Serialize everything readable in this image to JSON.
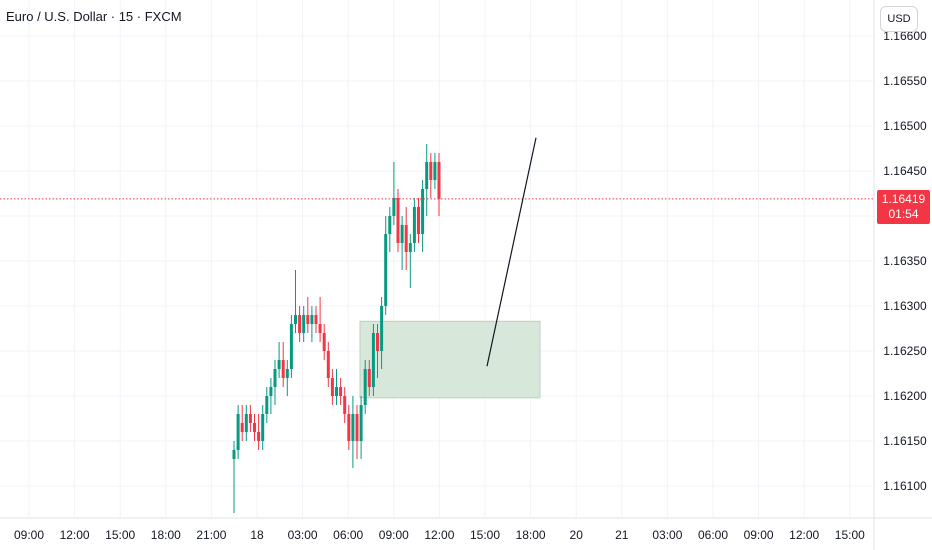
{
  "header": {
    "title": "Euro / U.S. Dollar · 15 · FXCM"
  },
  "currency_label": "USD",
  "last_price": {
    "value": "1.16419",
    "countdown": "01:54"
  },
  "colors": {
    "up": "#089981",
    "down": "#f23645",
    "grid": "#f0f3fa",
    "box_fill": "#d7e7d9",
    "box_stroke": "#b9d3bd",
    "line": "#131722"
  },
  "chart_data": {
    "type": "candlestick",
    "symbol": "EURUSD",
    "interval": "15",
    "ylim": [
      1.1607,
      1.16595
    ],
    "yticks": [
      1.161,
      1.1615,
      1.162,
      1.1625,
      1.163,
      1.1635,
      1.164,
      1.1645,
      1.165,
      1.1655,
      1.166
    ],
    "ytick_labels": [
      "1.16100",
      "1.16150",
      "1.16200",
      "1.16250",
      "1.16300",
      "1.16350",
      "1.16400",
      "1.16450",
      "1.16500",
      "1.16550",
      "1.16600"
    ],
    "xtick_labels": [
      "09:00",
      "12:00",
      "15:00",
      "18:00",
      "21:00",
      "18",
      "03:00",
      "06:00",
      "09:00",
      "12:00",
      "15:00",
      "18:00",
      "20",
      "21",
      "03:00",
      "06:00",
      "09:00",
      "12:00",
      "15:00"
    ],
    "candles_ohlc": [
      [
        1.1613,
        1.1615,
        1.1607,
        1.1614
      ],
      [
        1.1614,
        1.1619,
        1.1613,
        1.1618
      ],
      [
        1.1617,
        1.1619,
        1.1615,
        1.1616
      ],
      [
        1.1616,
        1.1619,
        1.1615,
        1.1618
      ],
      [
        1.1618,
        1.1619,
        1.1616,
        1.1617
      ],
      [
        1.1617,
        1.1618,
        1.1615,
        1.1616
      ],
      [
        1.1616,
        1.1618,
        1.1614,
        1.1615
      ],
      [
        1.1615,
        1.1619,
        1.1614,
        1.1618
      ],
      [
        1.1618,
        1.1621,
        1.1617,
        1.162
      ],
      [
        1.162,
        1.1622,
        1.1618,
        1.1621
      ],
      [
        1.1621,
        1.1624,
        1.1619,
        1.1623
      ],
      [
        1.1623,
        1.1626,
        1.1622,
        1.1624
      ],
      [
        1.1624,
        1.1626,
        1.1621,
        1.1622
      ],
      [
        1.1622,
        1.1624,
        1.162,
        1.1623
      ],
      [
        1.1623,
        1.1629,
        1.1622,
        1.1628
      ],
      [
        1.1628,
        1.1634,
        1.1627,
        1.1629
      ],
      [
        1.1629,
        1.163,
        1.1626,
        1.1627
      ],
      [
        1.1627,
        1.163,
        1.1626,
        1.1629
      ],
      [
        1.1629,
        1.1631,
        1.1627,
        1.1628
      ],
      [
        1.1628,
        1.163,
        1.1626,
        1.1629
      ],
      [
        1.1629,
        1.163,
        1.1627,
        1.1628
      ],
      [
        1.1628,
        1.1631,
        1.1626,
        1.1627
      ],
      [
        1.1627,
        1.1628,
        1.1624,
        1.1625
      ],
      [
        1.1625,
        1.1626,
        1.1621,
        1.1622
      ],
      [
        1.1622,
        1.1623,
        1.1619,
        1.162
      ],
      [
        1.162,
        1.1623,
        1.1619,
        1.1621
      ],
      [
        1.1621,
        1.1622,
        1.1619,
        1.162
      ],
      [
        1.162,
        1.1621,
        1.1617,
        1.1618
      ],
      [
        1.1618,
        1.1619,
        1.1614,
        1.1615
      ],
      [
        1.1615,
        1.162,
        1.1612,
        1.1618
      ],
      [
        1.1618,
        1.1619,
        1.1613,
        1.1615
      ],
      [
        1.1615,
        1.162,
        1.1613,
        1.1619
      ],
      [
        1.1619,
        1.1624,
        1.1618,
        1.1623
      ],
      [
        1.1623,
        1.1624,
        1.162,
        1.1621
      ],
      [
        1.1621,
        1.1628,
        1.162,
        1.1627
      ],
      [
        1.1627,
        1.1628,
        1.1622,
        1.1625
      ],
      [
        1.1625,
        1.1631,
        1.1623,
        1.163
      ],
      [
        1.163,
        1.164,
        1.1629,
        1.1638
      ],
      [
        1.1638,
        1.1641,
        1.1636,
        1.164
      ],
      [
        1.164,
        1.1646,
        1.1639,
        1.1642
      ],
      [
        1.1642,
        1.1643,
        1.1636,
        1.1637
      ],
      [
        1.1637,
        1.164,
        1.1634,
        1.1639
      ],
      [
        1.1639,
        1.1641,
        1.1634,
        1.1636
      ],
      [
        1.1636,
        1.1638,
        1.1632,
        1.1637
      ],
      [
        1.1637,
        1.1642,
        1.1636,
        1.1641
      ],
      [
        1.1641,
        1.1642,
        1.1637,
        1.1638
      ],
      [
        1.1638,
        1.1644,
        1.1636,
        1.1643
      ],
      [
        1.1643,
        1.1648,
        1.164,
        1.1646
      ],
      [
        1.1646,
        1.1647,
        1.1642,
        1.1644
      ],
      [
        1.1644,
        1.1647,
        1.1643,
        1.1646
      ],
      [
        1.1646,
        1.1647,
        1.164,
        1.16419
      ]
    ],
    "zone": {
      "price_top": 1.16283,
      "price_bottom": 1.16198
    },
    "trendline": {
      "start_price": 1.16233,
      "end_price": 1.16487
    },
    "last_price_line": 1.16419
  }
}
